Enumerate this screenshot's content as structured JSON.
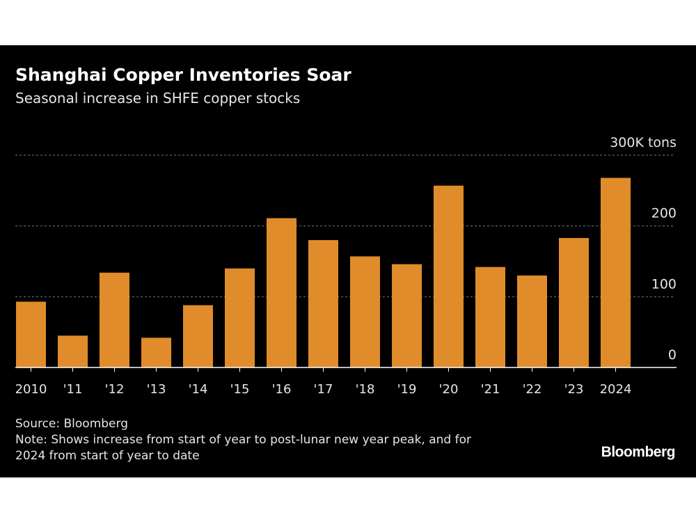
{
  "chart_data": {
    "type": "bar",
    "title": "Shanghai Copper Inventories Soar",
    "subtitle": "Seasonal increase in SHFE copper stocks",
    "categories": [
      "2010",
      "'11",
      "'12",
      "'13",
      "'14",
      "'15",
      "'16",
      "'17",
      "'18",
      "'19",
      "'20",
      "'21",
      "'22",
      "'23",
      "2024"
    ],
    "values": [
      93,
      45,
      134,
      42,
      88,
      140,
      211,
      180,
      157,
      146,
      257,
      142,
      130,
      183,
      268
    ],
    "ylim": [
      0,
      300
    ],
    "yticks": [
      0,
      100,
      200,
      300
    ],
    "ytick_labels": [
      "0",
      "100",
      "200",
      "300K tons"
    ],
    "grid": true,
    "bar_color": "#e08c2a",
    "background": "#000000"
  },
  "footer": {
    "source": "Source: Bloomberg",
    "note_line1": "Note: Shows increase from start of year to post-lunar new year peak, and for",
    "note_line2": "2024 from start of year to date",
    "logo": "Bloomberg"
  }
}
